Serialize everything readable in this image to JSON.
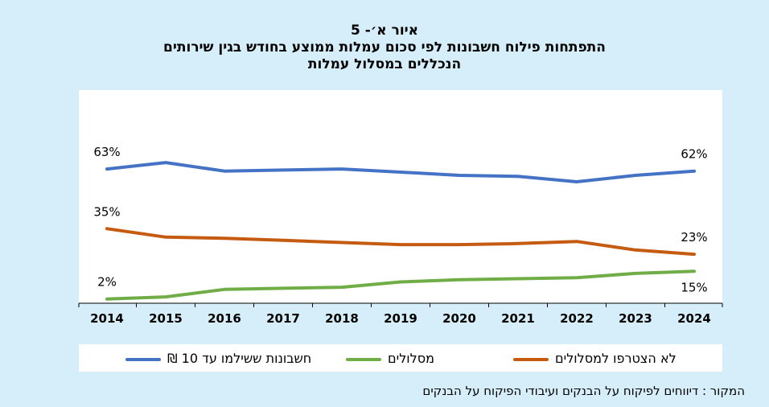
{
  "titles": {
    "line1": "איור א׳- 5",
    "line2": "התפתחות פילוח חשבונות לפי סכום עמלות ממוצע בחודש בגין שירותים",
    "line3": "הנכללים במסלול עמלות"
  },
  "source": "המקור : דיווחים לפיקוח על הבנקים ועיבודי הפיקוח על הבנקים",
  "colors": {
    "blue": "#4472c4",
    "green": "#70ad47",
    "orange": "#c55a11"
  },
  "chart_data": {
    "type": "line",
    "categories": [
      "2014",
      "2015",
      "2016",
      "2017",
      "2018",
      "2019",
      "2020",
      "2021",
      "2022",
      "2023",
      "2024"
    ],
    "ylim": [
      0,
      100
    ],
    "series": [
      {
        "name": "חשבונות ששילמו עד 10 ₪",
        "color": "#4472c4",
        "values": [
          63,
          66,
          62,
          62.5,
          63,
          61.5,
          60,
          59.5,
          57,
          60,
          62
        ],
        "labels": {
          "first": "63%",
          "last": "62%"
        }
      },
      {
        "name": "מסלולים",
        "color": "#70ad47",
        "values": [
          2,
          3,
          6.5,
          7,
          7.5,
          10,
          11,
          11.5,
          12,
          14,
          15
        ],
        "labels": {
          "first": "2%",
          "last": "15%"
        }
      },
      {
        "name": "לא הצטרפו למסלולים",
        "color": "#c55a11",
        "values": [
          35,
          31,
          30.5,
          29.5,
          28.5,
          27.5,
          27.5,
          28,
          29,
          25,
          23
        ],
        "labels": {
          "first": "35%",
          "last": "23%"
        }
      }
    ]
  }
}
